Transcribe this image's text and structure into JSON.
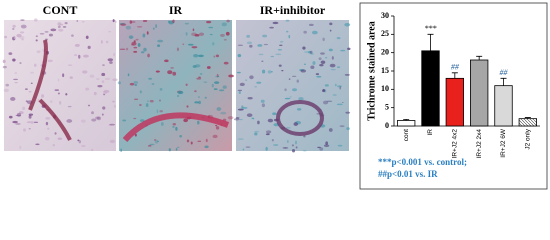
{
  "panels": {
    "labels": [
      "CONT",
      "IR",
      "IR+inhibitor"
    ]
  },
  "chart_data": {
    "type": "bar",
    "y_label": "Trichrome stained area",
    "categories": [
      "cont",
      "IR",
      "IR+J2 4x2",
      "IR+J2 2x4",
      "IR+J2 6W",
      "J2 only"
    ],
    "values": [
      1.5,
      20.5,
      13,
      18,
      11,
      2
    ],
    "errors": [
      0.3,
      4.5,
      1.5,
      1,
      2,
      0.3
    ],
    "colors": [
      "#ffffff",
      "#000000",
      "#e8211c",
      "#a6a6a6",
      "#d9d9d9",
      "hatch"
    ],
    "bar_annotations": [
      null,
      "***",
      "##",
      null,
      "##",
      null
    ],
    "ylim": [
      0,
      30
    ],
    "yticks": [
      0,
      5,
      10,
      15,
      20,
      25,
      30
    ],
    "footnotes": [
      "***p<0.001 vs. control;",
      "##p<0.01 vs.  IR"
    ]
  }
}
